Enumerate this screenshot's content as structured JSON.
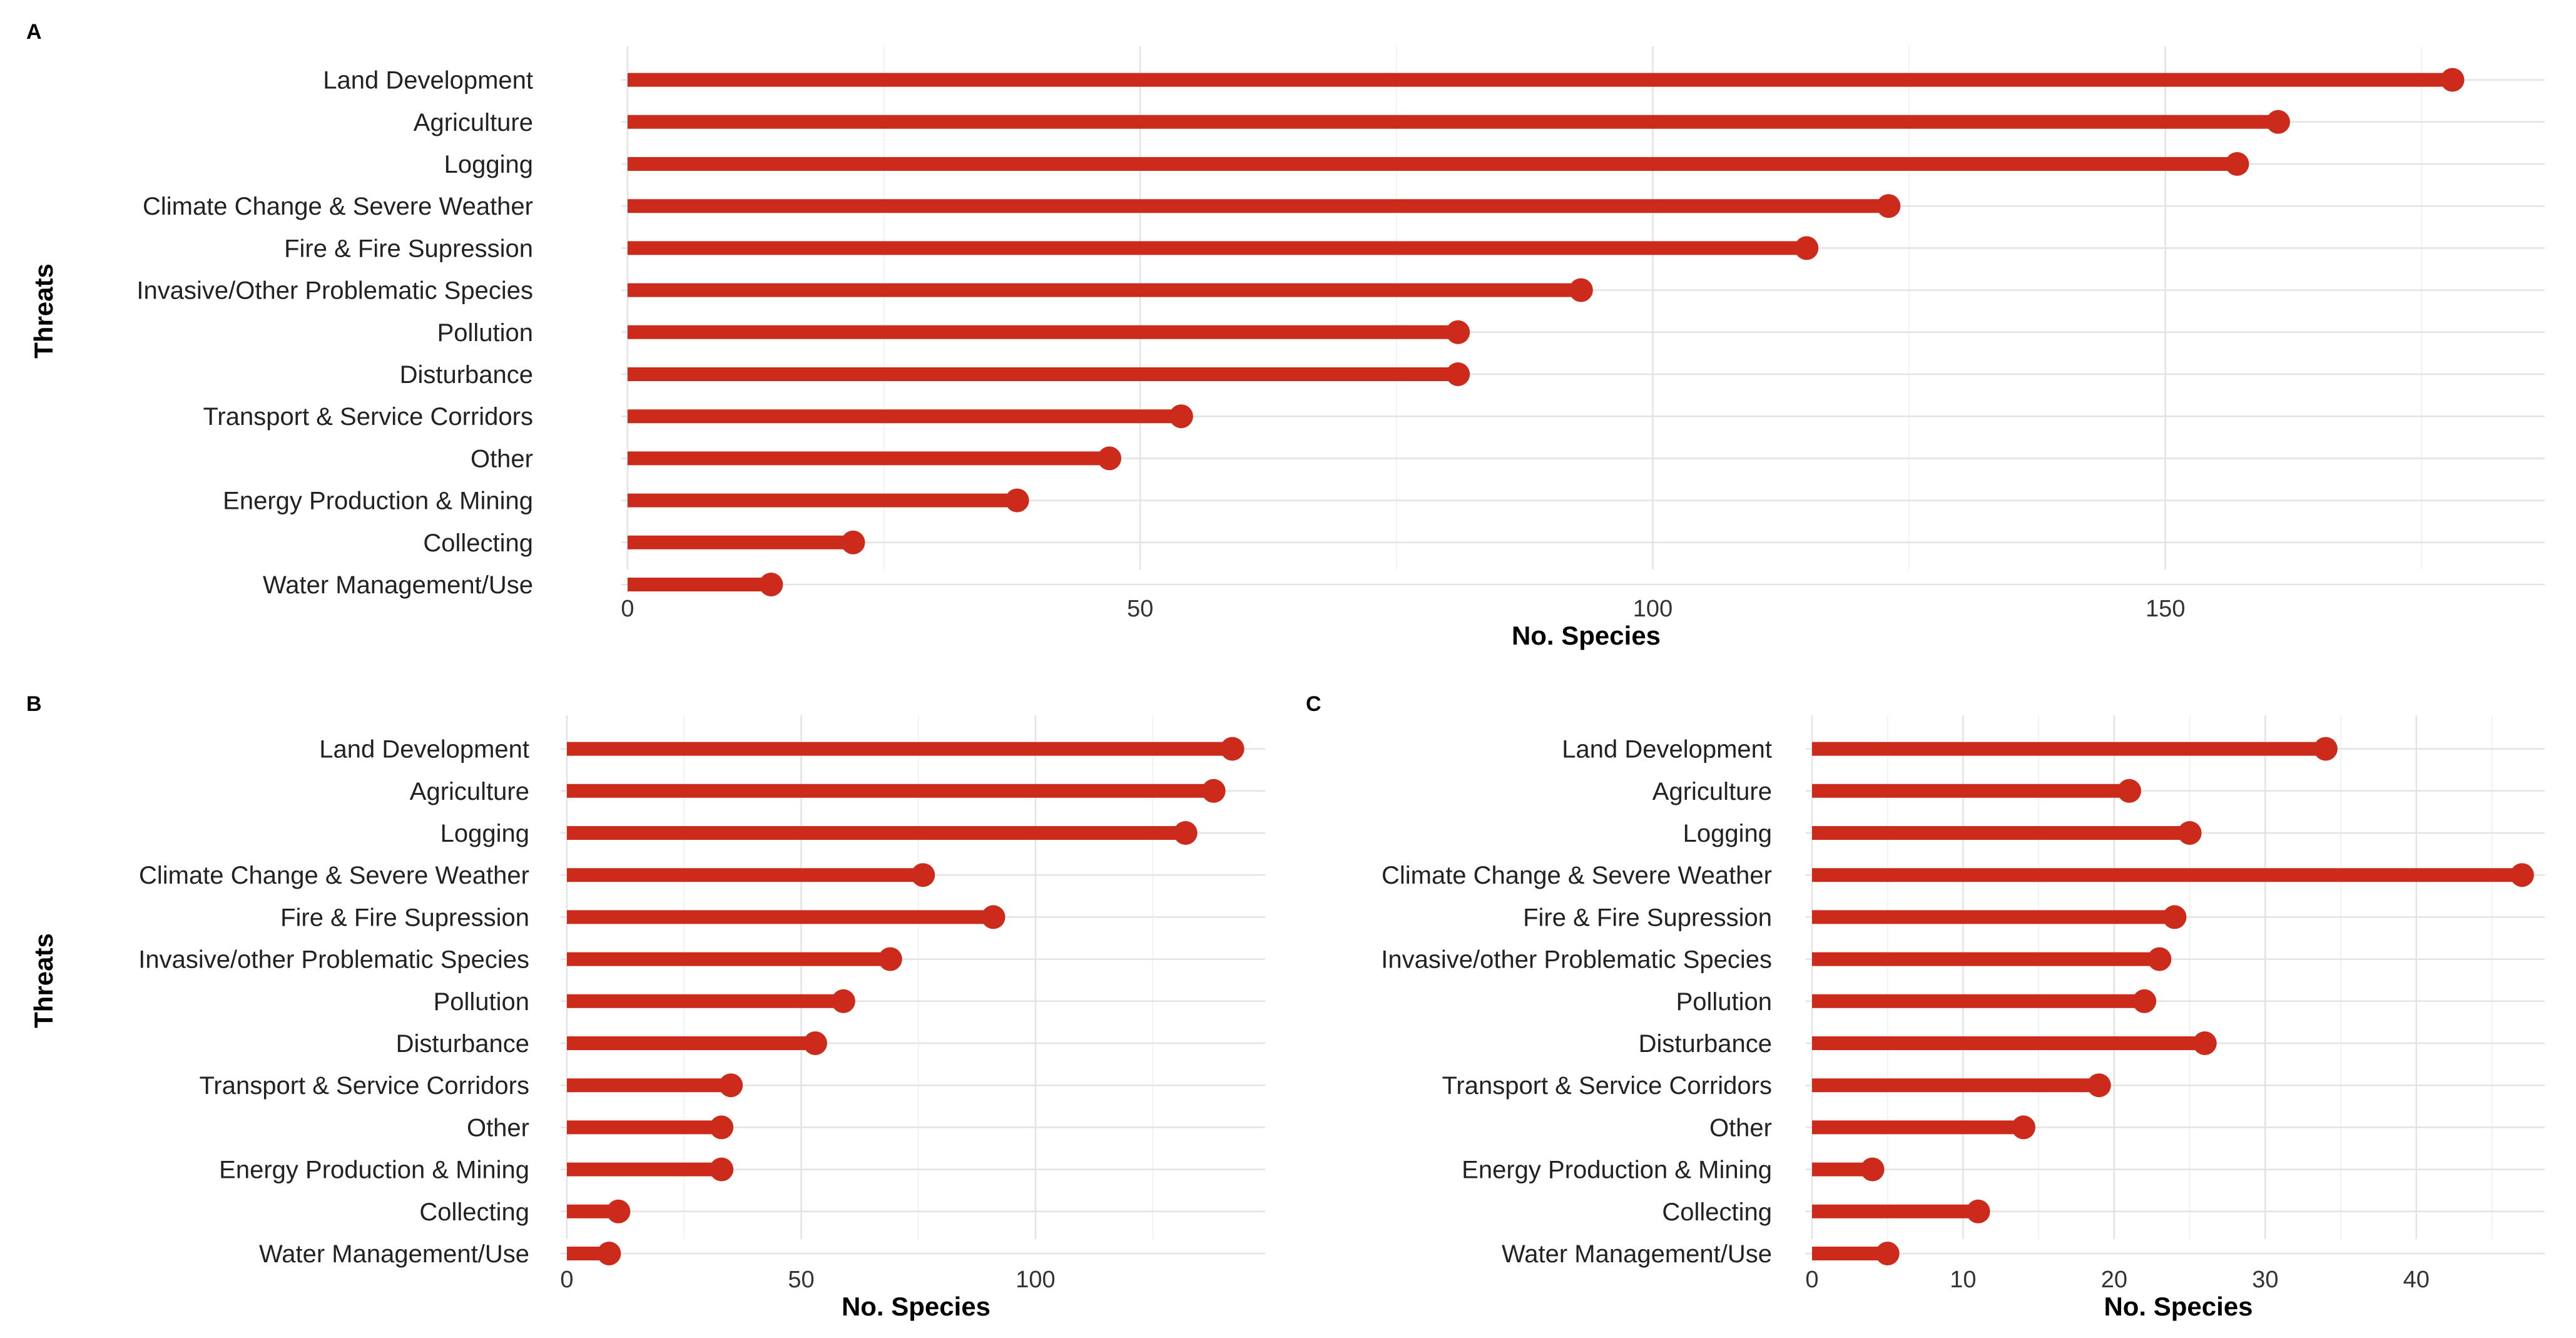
{
  "colors": {
    "accent": "#cc2a1a",
    "grid_major": "#e3e3e3",
    "grid_minor": "#f2f2f2"
  },
  "chart_data": [
    {
      "panel": "A",
      "type": "lollipop",
      "ylabel": "Threats",
      "xlabel": "No. Species",
      "categories": [
        "Land Development",
        "Agriculture",
        "Logging",
        "Climate Change & Severe Weather",
        "Fire & Fire Supression",
        "Invasive/Other Problematic Species",
        "Pollution",
        "Disturbance",
        "Transport & Service Corridors",
        "Other",
        "Energy Production & Mining",
        "Collecting",
        "Water Management/Use"
      ],
      "values": [
        178,
        161,
        157,
        123,
        115,
        93,
        81,
        81,
        54,
        47,
        38,
        22,
        14
      ],
      "xlim": [
        0,
        187
      ],
      "xticks": [
        0,
        50,
        100,
        150
      ],
      "xtick_labels": [
        "0",
        "50",
        "100",
        "150"
      ]
    },
    {
      "panel": "B",
      "type": "lollipop",
      "ylabel": "Threats",
      "xlabel": "No. Species",
      "categories": [
        "Land Development",
        "Agriculture",
        "Logging",
        "Climate Change & Severe Weather",
        "Fire & Fire Supression",
        "Invasive/other Problematic Species",
        "Pollution",
        "Disturbance",
        "Transport & Service Corridors",
        "Other",
        "Energy Production & Mining",
        "Collecting",
        "Water Management/Use"
      ],
      "values": [
        142,
        138,
        132,
        76,
        91,
        69,
        59,
        53,
        35,
        33,
        33,
        11,
        9
      ],
      "xlim": [
        0,
        149
      ],
      "xticks": [
        0,
        50,
        100
      ],
      "xtick_labels": [
        "0",
        "50",
        "100"
      ]
    },
    {
      "panel": "C",
      "type": "lollipop",
      "ylabel": "",
      "xlabel": "No. Species",
      "categories": [
        "Land Development",
        "Agriculture",
        "Logging",
        "Climate Change & Severe Weather",
        "Fire & Fire Supression",
        "Invasive/other Problematic Species",
        "Pollution",
        "Disturbance",
        "Transport & Service Corridors",
        "Other",
        "Energy Production & Mining",
        "Collecting",
        "Water Management/Use"
      ],
      "values": [
        34,
        21,
        25,
        47,
        24,
        23,
        22,
        26,
        19,
        14,
        4,
        11,
        5
      ],
      "xlim": [
        0,
        48.5
      ],
      "xticks": [
        0,
        10,
        20,
        30,
        40
      ],
      "xtick_labels": [
        "0",
        "10",
        "20",
        "30",
        "40"
      ]
    }
  ]
}
